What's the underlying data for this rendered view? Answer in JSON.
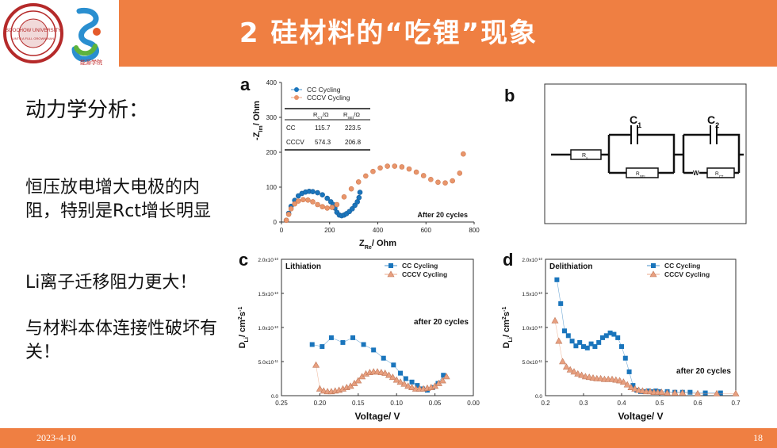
{
  "header": {
    "title": "2 硅材料的“吃锂”现象",
    "logo_text": "SOOCHOW UNIVERSITY",
    "logo_text2": "UNTO A FULL GROWN MAN",
    "school_logo_text": "能源学院"
  },
  "left": {
    "kinetics": "动力学分析：",
    "line2": "恒压放电增大电极的内阻，特别是Rct增长明显",
    "line3": "Li离子迁移阻力更大！",
    "line4": "与材料本体连接性破坏有关！"
  },
  "footer": {
    "date": "2023-4-10",
    "page": "18"
  },
  "colors": {
    "header": "#ef7f42",
    "cc": "#1a75bc",
    "cccv": "#e8956b",
    "ccTri": "#e8a080"
  },
  "chart_data": [
    {
      "panel": "a",
      "type": "scatter",
      "xlabel": "Z",
      "xlabel_sub": "Re",
      "xlabel_unit": "/ Ohm",
      "ylabel": "-Z",
      "ylabel_sub": "Im",
      "ylabel_unit": "/ Ohm",
      "xlim": [
        0,
        800
      ],
      "ylim": [
        0,
        400
      ],
      "xticks": [
        "0",
        "200",
        "400",
        "600",
        "800"
      ],
      "yticks": [
        "0",
        "100",
        "200",
        "300",
        "400"
      ],
      "annotation": "After  20 cycles",
      "legend": [
        "CC        Cycling",
        "CCCV Cycling"
      ],
      "table": {
        "headers": [
          "",
          "R_CT/Ω",
          "R_SEI/Ω"
        ],
        "rows": [
          [
            "CC",
            "115.7",
            "223.5"
          ],
          [
            "CCCV",
            "574.3",
            "206.8"
          ]
        ]
      },
      "series": [
        {
          "name": "CC Cycling",
          "marker": "circle",
          "x": [
            20,
            30,
            40,
            55,
            70,
            85,
            100,
            115,
            130,
            150,
            170,
            190,
            205,
            215,
            222,
            230,
            240,
            250,
            260,
            270,
            282,
            294,
            305,
            315,
            322,
            326
          ],
          "y": [
            5,
            25,
            45,
            62,
            75,
            82,
            86,
            88,
            87,
            84,
            78,
            68,
            58,
            50,
            40,
            28,
            20,
            18,
            20,
            24,
            30,
            38,
            48,
            58,
            70,
            85
          ]
        },
        {
          "name": "CCCV Cycling",
          "marker": "circle",
          "x": [
            20,
            30,
            40,
            55,
            70,
            90,
            110,
            130,
            150,
            170,
            190,
            210,
            230,
            260,
            290,
            320,
            350,
            380,
            410,
            440,
            470,
            500,
            530,
            560,
            590,
            620,
            650,
            680,
            710,
            740,
            755
          ],
          "y": [
            5,
            22,
            38,
            52,
            60,
            64,
            63,
            58,
            50,
            44,
            40,
            42,
            50,
            72,
            95,
            115,
            132,
            145,
            155,
            160,
            160,
            158,
            152,
            143,
            133,
            122,
            114,
            112,
            118,
            140,
            195
          ]
        }
      ]
    },
    {
      "panel": "c",
      "type": "scatter",
      "xlabel": "Voltage/ V",
      "ylabel": "D",
      "ylabel_sub": "Li",
      "ylabel_unit": "/ cm",
      "ylabel_sup": "2",
      "ylabel_unit2": "s",
      "ylabel_sup2": "-1",
      "title": "Lithiation",
      "annotation": "after 20 cycles",
      "xlim": [
        0.25,
        0.0
      ],
      "ylim": [
        0,
        2.0
      ],
      "xticks": [
        "0.25",
        "0.20",
        "0.15",
        "0.10",
        "0.05",
        "0.00"
      ],
      "yticks": [
        "0.0",
        "5.0x10",
        "1.0x10",
        "1.5x10",
        "2.0x10"
      ],
      "ytick_exp": [
        "",
        "-11",
        "-10",
        "-10",
        "-10"
      ],
      "legend": [
        "CC       Cycling",
        "CCCV Cycling"
      ],
      "series": [
        {
          "name": "CC Cycling",
          "marker": "square",
          "x": [
            0.21,
            0.197,
            0.185,
            0.17,
            0.157,
            0.143,
            0.13,
            0.117,
            0.104,
            0.095,
            0.088,
            0.08,
            0.073,
            0.066,
            0.06,
            0.053,
            0.046,
            0.039
          ],
          "y": [
            0.75,
            0.72,
            0.85,
            0.78,
            0.85,
            0.75,
            0.67,
            0.55,
            0.45,
            0.33,
            0.25,
            0.2,
            0.15,
            0.1,
            0.08,
            0.12,
            0.18,
            0.3
          ]
        },
        {
          "name": "CCCV Cycling",
          "marker": "triangle",
          "x": [
            0.205,
            0.2,
            0.195,
            0.19,
            0.185,
            0.18,
            0.175,
            0.17,
            0.165,
            0.16,
            0.155,
            0.15,
            0.145,
            0.14,
            0.135,
            0.13,
            0.125,
            0.12,
            0.115,
            0.11,
            0.105,
            0.1,
            0.095,
            0.09,
            0.085,
            0.08,
            0.075,
            0.07,
            0.065,
            0.06,
            0.055,
            0.05,
            0.045,
            0.04,
            0.035
          ],
          "y": [
            0.45,
            0.1,
            0.07,
            0.06,
            0.06,
            0.07,
            0.08,
            0.1,
            0.12,
            0.14,
            0.18,
            0.22,
            0.28,
            0.32,
            0.34,
            0.35,
            0.35,
            0.34,
            0.33,
            0.3,
            0.27,
            0.23,
            0.2,
            0.17,
            0.14,
            0.12,
            0.1,
            0.1,
            0.1,
            0.11,
            0.12,
            0.14,
            0.18,
            0.22,
            0.28
          ]
        }
      ]
    },
    {
      "panel": "d",
      "type": "scatter",
      "xlabel": "Voltage/ V",
      "ylabel": "D",
      "ylabel_sub": "Li",
      "ylabel_unit": "/ cm",
      "ylabel_sup": "2",
      "ylabel_unit2": "s",
      "ylabel_sup2": "-1",
      "title": "Delithiation",
      "annotation": "after 20 cycles",
      "xlim": [
        0.2,
        0.7
      ],
      "ylim": [
        0,
        2.0
      ],
      "xticks": [
        "0.2",
        "0.3",
        "0.4",
        "0.5",
        "0.6",
        "0.7"
      ],
      "yticks": [
        "0.0",
        "5.0x10",
        "1.0x10",
        "1.5x10",
        "2.0x10"
      ],
      "ytick_exp": [
        "",
        "-11",
        "-10",
        "-10",
        "-10"
      ],
      "legend": [
        "CC       Cycling",
        "CCCV Cycling"
      ],
      "series": [
        {
          "name": "CC Cycling",
          "marker": "square",
          "x": [
            0.23,
            0.24,
            0.25,
            0.26,
            0.27,
            0.28,
            0.29,
            0.3,
            0.31,
            0.32,
            0.33,
            0.34,
            0.35,
            0.36,
            0.37,
            0.38,
            0.39,
            0.4,
            0.41,
            0.42,
            0.43,
            0.44,
            0.45,
            0.46,
            0.47,
            0.48,
            0.49,
            0.5,
            0.52,
            0.54,
            0.56,
            0.58,
            0.62,
            0.66
          ],
          "y": [
            1.7,
            1.35,
            0.95,
            0.88,
            0.8,
            0.73,
            0.78,
            0.72,
            0.7,
            0.76,
            0.72,
            0.78,
            0.85,
            0.88,
            0.92,
            0.9,
            0.85,
            0.72,
            0.55,
            0.35,
            0.15,
            0.08,
            0.06,
            0.06,
            0.07,
            0.06,
            0.07,
            0.06,
            0.06,
            0.05,
            0.05,
            0.05,
            0.04,
            0.04
          ]
        },
        {
          "name": "CCCV Cycling",
          "marker": "triangle",
          "x": [
            0.225,
            0.235,
            0.245,
            0.255,
            0.265,
            0.275,
            0.285,
            0.295,
            0.305,
            0.315,
            0.325,
            0.335,
            0.345,
            0.355,
            0.365,
            0.375,
            0.385,
            0.395,
            0.405,
            0.415,
            0.425,
            0.435,
            0.445,
            0.455,
            0.465,
            0.475,
            0.485,
            0.495,
            0.505,
            0.52,
            0.54,
            0.56,
            0.6,
            0.65,
            0.7
          ],
          "y": [
            1.1,
            0.8,
            0.5,
            0.42,
            0.38,
            0.35,
            0.32,
            0.3,
            0.28,
            0.27,
            0.26,
            0.25,
            0.25,
            0.24,
            0.24,
            0.24,
            0.23,
            0.22,
            0.2,
            0.16,
            0.12,
            0.1,
            0.08,
            0.07,
            0.06,
            0.06,
            0.05,
            0.05,
            0.05,
            0.04,
            0.04,
            0.04,
            0.03,
            0.03,
            0.03
          ]
        }
      ]
    }
  ],
  "circuit": {
    "panel": "b",
    "labels": {
      "rs": "R",
      "rs_sub": "s",
      "c1": "C",
      "c1_sub": "1",
      "c2": "C",
      "c2_sub": "2",
      "rsei": "R",
      "rsei_sub": "SEI",
      "w": "W",
      "rct": "R",
      "rct_sub": "CT"
    }
  }
}
